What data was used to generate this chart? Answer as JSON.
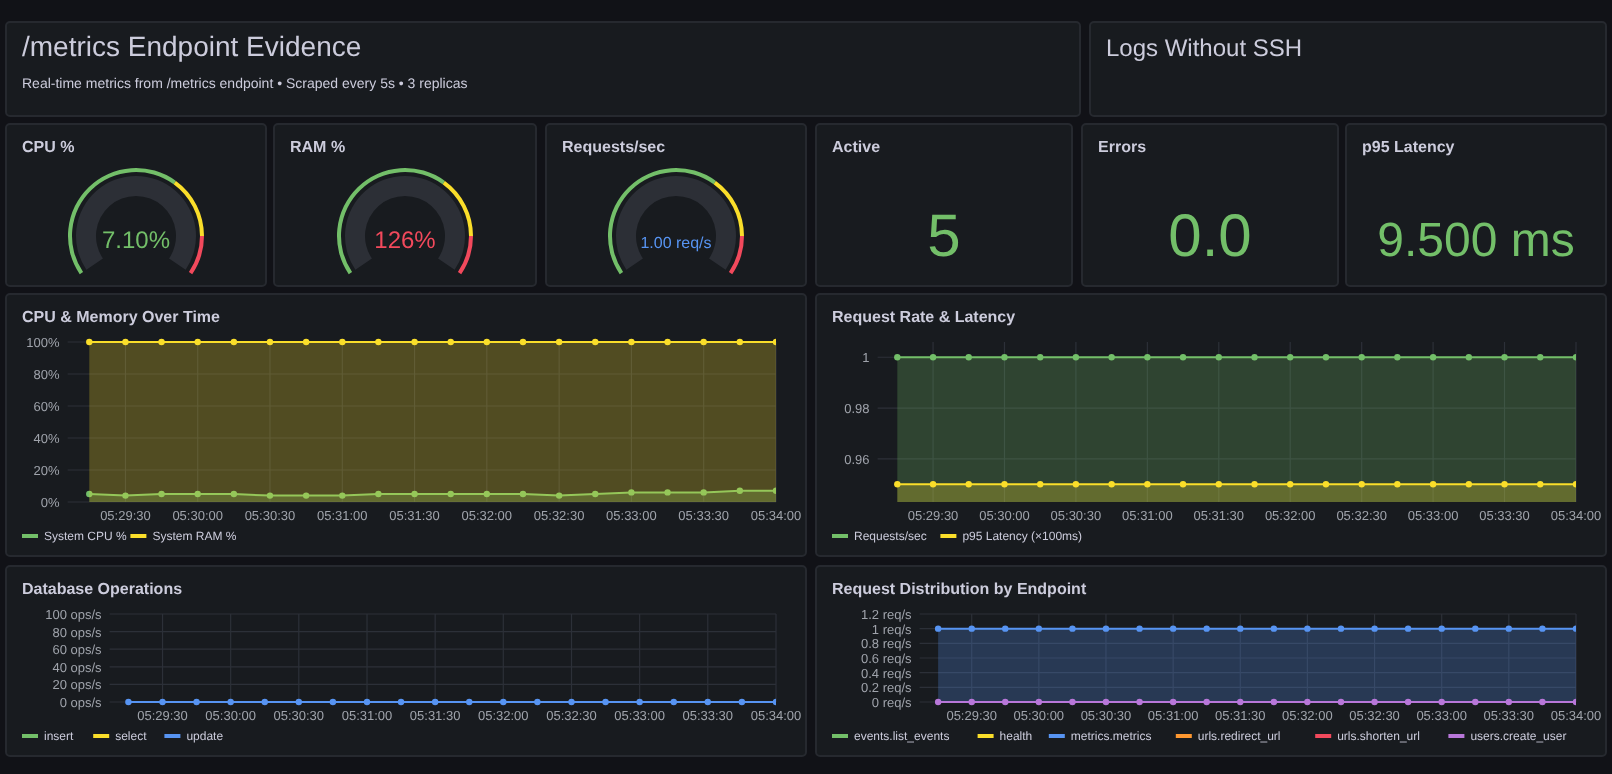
{
  "chart_data": [
    {
      "type": "other",
      "title": "/metrics Endpoint Evidence",
      "subtitle": "Real-time metrics from /metrics endpoint • Scraped every 5s • 3 replicas"
    },
    {
      "type": "other",
      "title": "Logs Without SSH"
    },
    {
      "type": "other",
      "title": "CPU %",
      "value_labels": [
        "7.10%"
      ],
      "color": "#73bf69"
    },
    {
      "type": "other",
      "title": "RAM %",
      "value_labels": [
        "126%"
      ],
      "color": "#f2495c"
    },
    {
      "type": "other",
      "title": "Requests/sec",
      "value_labels": [
        "1.00 req/s"
      ],
      "color": "#5794f2"
    },
    {
      "type": "other",
      "title": "Active",
      "value_labels": [
        "5"
      ],
      "color": "#73bf69"
    },
    {
      "type": "other",
      "title": "Errors",
      "value_labels": [
        "0.0"
      ],
      "color": "#73bf69"
    },
    {
      "type": "other",
      "title": "p95 Latency",
      "value_labels": [
        "9.500 ms"
      ],
      "color": "#73bf69"
    },
    {
      "type": "area",
      "title": "CPU & Memory Over Time",
      "x": [
        5.4875,
        5.49167,
        5.49583,
        5.5,
        5.50417,
        5.50833,
        5.5125,
        5.51667,
        5.52083,
        5.525,
        5.52917,
        5.53333,
        5.5375,
        5.54167,
        5.54583,
        5.55,
        5.55417,
        5.55833,
        5.5625,
        5.56667
      ],
      "xlim": [
        5.485,
        5.56667
      ],
      "xticks": [
        {
          "value": 5.49167,
          "label": "05:29:30"
        },
        {
          "value": 5.5,
          "label": "05:30:00"
        },
        {
          "value": 5.50833,
          "label": "05:30:30"
        },
        {
          "value": 5.51667,
          "label": "05:31:00"
        },
        {
          "value": 5.525,
          "label": "05:31:30"
        },
        {
          "value": 5.53333,
          "label": "05:32:00"
        },
        {
          "value": 5.54167,
          "label": "05:32:30"
        },
        {
          "value": 5.55,
          "label": "05:33:00"
        },
        {
          "value": 5.55833,
          "label": "05:33:30"
        },
        {
          "value": 5.56667,
          "label": "05:34:00"
        }
      ],
      "ylim": [
        0,
        100
      ],
      "yticks": [
        {
          "value": 0,
          "label": "0%"
        },
        {
          "value": 20,
          "label": "20%"
        },
        {
          "value": 40,
          "label": "40%"
        },
        {
          "value": 60,
          "label": "60%"
        },
        {
          "value": 80,
          "label": "80%"
        },
        {
          "value": 100,
          "label": "100%"
        }
      ],
      "series": [
        {
          "name": "System CPU %",
          "color": "#73bf69",
          "values": [
            5,
            4,
            5,
            5,
            5,
            4,
            4,
            4,
            5,
            5,
            5,
            5,
            5,
            4,
            5,
            6,
            6,
            6,
            7,
            7
          ]
        },
        {
          "name": "System RAM %",
          "color": "#fade2a",
          "values": [
            100,
            100,
            100,
            100,
            100,
            100,
            100,
            100,
            100,
            100,
            100,
            100,
            100,
            100,
            100,
            100,
            100,
            100,
            100,
            100
          ]
        }
      ],
      "grid": true,
      "legend": "bottom",
      "marker": "circle"
    },
    {
      "type": "area",
      "title": "Request Rate & Latency",
      "x": [
        5.4875,
        5.49167,
        5.49583,
        5.5,
        5.50417,
        5.50833,
        5.5125,
        5.51667,
        5.52083,
        5.525,
        5.52917,
        5.53333,
        5.5375,
        5.54167,
        5.54583,
        5.55,
        5.55417,
        5.55833,
        5.5625,
        5.56667
      ],
      "xlim": [
        5.4852,
        5.56667
      ],
      "xticks": [
        {
          "value": 5.49167,
          "label": "05:29:30"
        },
        {
          "value": 5.5,
          "label": "05:30:00"
        },
        {
          "value": 5.50833,
          "label": "05:30:30"
        },
        {
          "value": 5.51667,
          "label": "05:31:00"
        },
        {
          "value": 5.525,
          "label": "05:31:30"
        },
        {
          "value": 5.53333,
          "label": "05:32:00"
        },
        {
          "value": 5.54167,
          "label": "05:32:30"
        },
        {
          "value": 5.55,
          "label": "05:33:00"
        },
        {
          "value": 5.55833,
          "label": "05:33:30"
        },
        {
          "value": 5.56667,
          "label": "05:34:00"
        }
      ],
      "ylim": [
        0.943,
        1.006
      ],
      "yticks": [
        0.96,
        0.98,
        1
      ],
      "series": [
        {
          "name": "Requests/sec",
          "color": "#73bf69",
          "values": [
            1,
            1,
            1,
            1,
            1,
            1,
            1,
            1,
            1,
            1,
            1,
            1,
            1,
            1,
            1,
            1,
            1,
            1,
            1,
            1
          ]
        },
        {
          "name": "p95 Latency (×100ms)",
          "color": "#fade2a",
          "values": [
            0.95,
            0.95,
            0.95,
            0.95,
            0.95,
            0.95,
            0.95,
            0.95,
            0.95,
            0.95,
            0.95,
            0.95,
            0.95,
            0.95,
            0.95,
            0.95,
            0.95,
            0.95,
            0.95,
            0.95
          ]
        }
      ],
      "grid": true,
      "legend": "bottom",
      "marker": "circle"
    },
    {
      "type": "line",
      "title": "Database Operations",
      "x": [
        5.4875,
        5.49167,
        5.49583,
        5.5,
        5.50417,
        5.50833,
        5.5125,
        5.51667,
        5.52083,
        5.525,
        5.52917,
        5.53333,
        5.5375,
        5.54167,
        5.54583,
        5.55,
        5.55417,
        5.55833,
        5.5625,
        5.56667
      ],
      "xlim": [
        5.4852,
        5.56667
      ],
      "xticks": [
        {
          "value": 5.49167,
          "label": "05:29:30"
        },
        {
          "value": 5.5,
          "label": "05:30:00"
        },
        {
          "value": 5.50833,
          "label": "05:30:30"
        },
        {
          "value": 5.51667,
          "label": "05:31:00"
        },
        {
          "value": 5.525,
          "label": "05:31:30"
        },
        {
          "value": 5.53333,
          "label": "05:32:00"
        },
        {
          "value": 5.54167,
          "label": "05:32:30"
        },
        {
          "value": 5.55,
          "label": "05:33:00"
        },
        {
          "value": 5.55833,
          "label": "05:33:30"
        },
        {
          "value": 5.56667,
          "label": "05:34:00"
        }
      ],
      "ylim": [
        0,
        100
      ],
      "yticks": [
        {
          "value": 0,
          "label": "0 ops/s"
        },
        {
          "value": 20,
          "label": "20 ops/s"
        },
        {
          "value": 40,
          "label": "40 ops/s"
        },
        {
          "value": 60,
          "label": "60 ops/s"
        },
        {
          "value": 80,
          "label": "80 ops/s"
        },
        {
          "value": 100,
          "label": "100 ops/s"
        }
      ],
      "series": [
        {
          "name": "insert",
          "color": "#73bf69",
          "values": [
            null,
            null,
            null,
            null,
            null,
            null,
            null,
            null,
            null,
            null,
            null,
            null,
            null,
            null,
            null,
            null,
            null,
            null,
            null,
            null
          ]
        },
        {
          "name": "select",
          "color": "#fade2a",
          "values": [
            null,
            null,
            null,
            null,
            null,
            null,
            null,
            null,
            null,
            null,
            null,
            null,
            null,
            null,
            null,
            null,
            null,
            null,
            null,
            null
          ]
        },
        {
          "name": "update",
          "color": "#5794f2",
          "values": [
            0,
            0,
            0,
            0,
            0,
            0,
            0,
            0,
            0,
            0,
            0,
            0,
            0,
            0,
            0,
            0,
            0,
            0,
            0,
            0
          ]
        }
      ],
      "grid": true,
      "legend": "bottom",
      "marker": "circle"
    },
    {
      "type": "line",
      "title": "Request Distribution by Endpoint",
      "x": [
        5.4875,
        5.49167,
        5.49583,
        5.5,
        5.50417,
        5.50833,
        5.5125,
        5.51667,
        5.52083,
        5.525,
        5.52917,
        5.53333,
        5.5375,
        5.54167,
        5.54583,
        5.55,
        5.55417,
        5.55833,
        5.5625,
        5.56667
      ],
      "xlim": [
        5.4852,
        5.56667
      ],
      "xticks": [
        {
          "value": 5.49167,
          "label": "05:29:30"
        },
        {
          "value": 5.5,
          "label": "05:30:00"
        },
        {
          "value": 5.50833,
          "label": "05:30:30"
        },
        {
          "value": 5.51667,
          "label": "05:31:00"
        },
        {
          "value": 5.525,
          "label": "05:31:30"
        },
        {
          "value": 5.53333,
          "label": "05:32:00"
        },
        {
          "value": 5.54167,
          "label": "05:32:30"
        },
        {
          "value": 5.55,
          "label": "05:33:00"
        },
        {
          "value": 5.55833,
          "label": "05:33:30"
        },
        {
          "value": 5.56667,
          "label": "05:34:00"
        }
      ],
      "ylim": [
        0,
        1.2
      ],
      "yticks": [
        {
          "value": 0,
          "label": "0 req/s"
        },
        {
          "value": 0.2,
          "label": "0.2 req/s"
        },
        {
          "value": 0.4,
          "label": "0.4 req/s"
        },
        {
          "value": 0.6,
          "label": "0.6 req/s"
        },
        {
          "value": 0.8,
          "label": "0.8 req/s"
        },
        {
          "value": 1,
          "label": "1 req/s"
        },
        {
          "value": 1.2,
          "label": "1.2 req/s"
        }
      ],
      "series": [
        {
          "name": "events.list_events",
          "color": "#73bf69",
          "values": [
            null,
            null,
            null,
            null,
            null,
            null,
            null,
            null,
            null,
            null,
            null,
            null,
            null,
            null,
            null,
            null,
            null,
            null,
            null,
            null
          ]
        },
        {
          "name": "health",
          "color": "#fade2a",
          "values": [
            null,
            null,
            null,
            null,
            null,
            null,
            null,
            null,
            null,
            null,
            null,
            null,
            null,
            null,
            null,
            null,
            null,
            null,
            null,
            null
          ]
        },
        {
          "name": "metrics.metrics",
          "color": "#5794f2",
          "type": "area",
          "values": [
            1,
            1,
            1,
            1,
            1,
            1,
            1,
            1,
            1,
            1,
            1,
            1,
            1,
            1,
            1,
            1,
            1,
            1,
            1,
            1
          ]
        },
        {
          "name": "urls.redirect_url",
          "color": "#ff9830",
          "values": [
            null,
            null,
            null,
            null,
            null,
            null,
            null,
            null,
            null,
            null,
            null,
            null,
            null,
            null,
            null,
            null,
            null,
            null,
            null,
            null
          ]
        },
        {
          "name": "urls.shorten_url",
          "color": "#f2495c",
          "values": [
            null,
            null,
            null,
            null,
            null,
            null,
            null,
            null,
            null,
            null,
            null,
            null,
            null,
            null,
            null,
            null,
            null,
            null,
            null,
            null
          ]
        },
        {
          "name": "users.create_user",
          "color": "#b877d9",
          "values": [
            0,
            0,
            0,
            0,
            0,
            0,
            0,
            0,
            0,
            0,
            0,
            0,
            0,
            0,
            0,
            0,
            0,
            0,
            0,
            0
          ]
        }
      ],
      "grid": true,
      "legend": "bottom",
      "marker": "circle"
    }
  ]
}
